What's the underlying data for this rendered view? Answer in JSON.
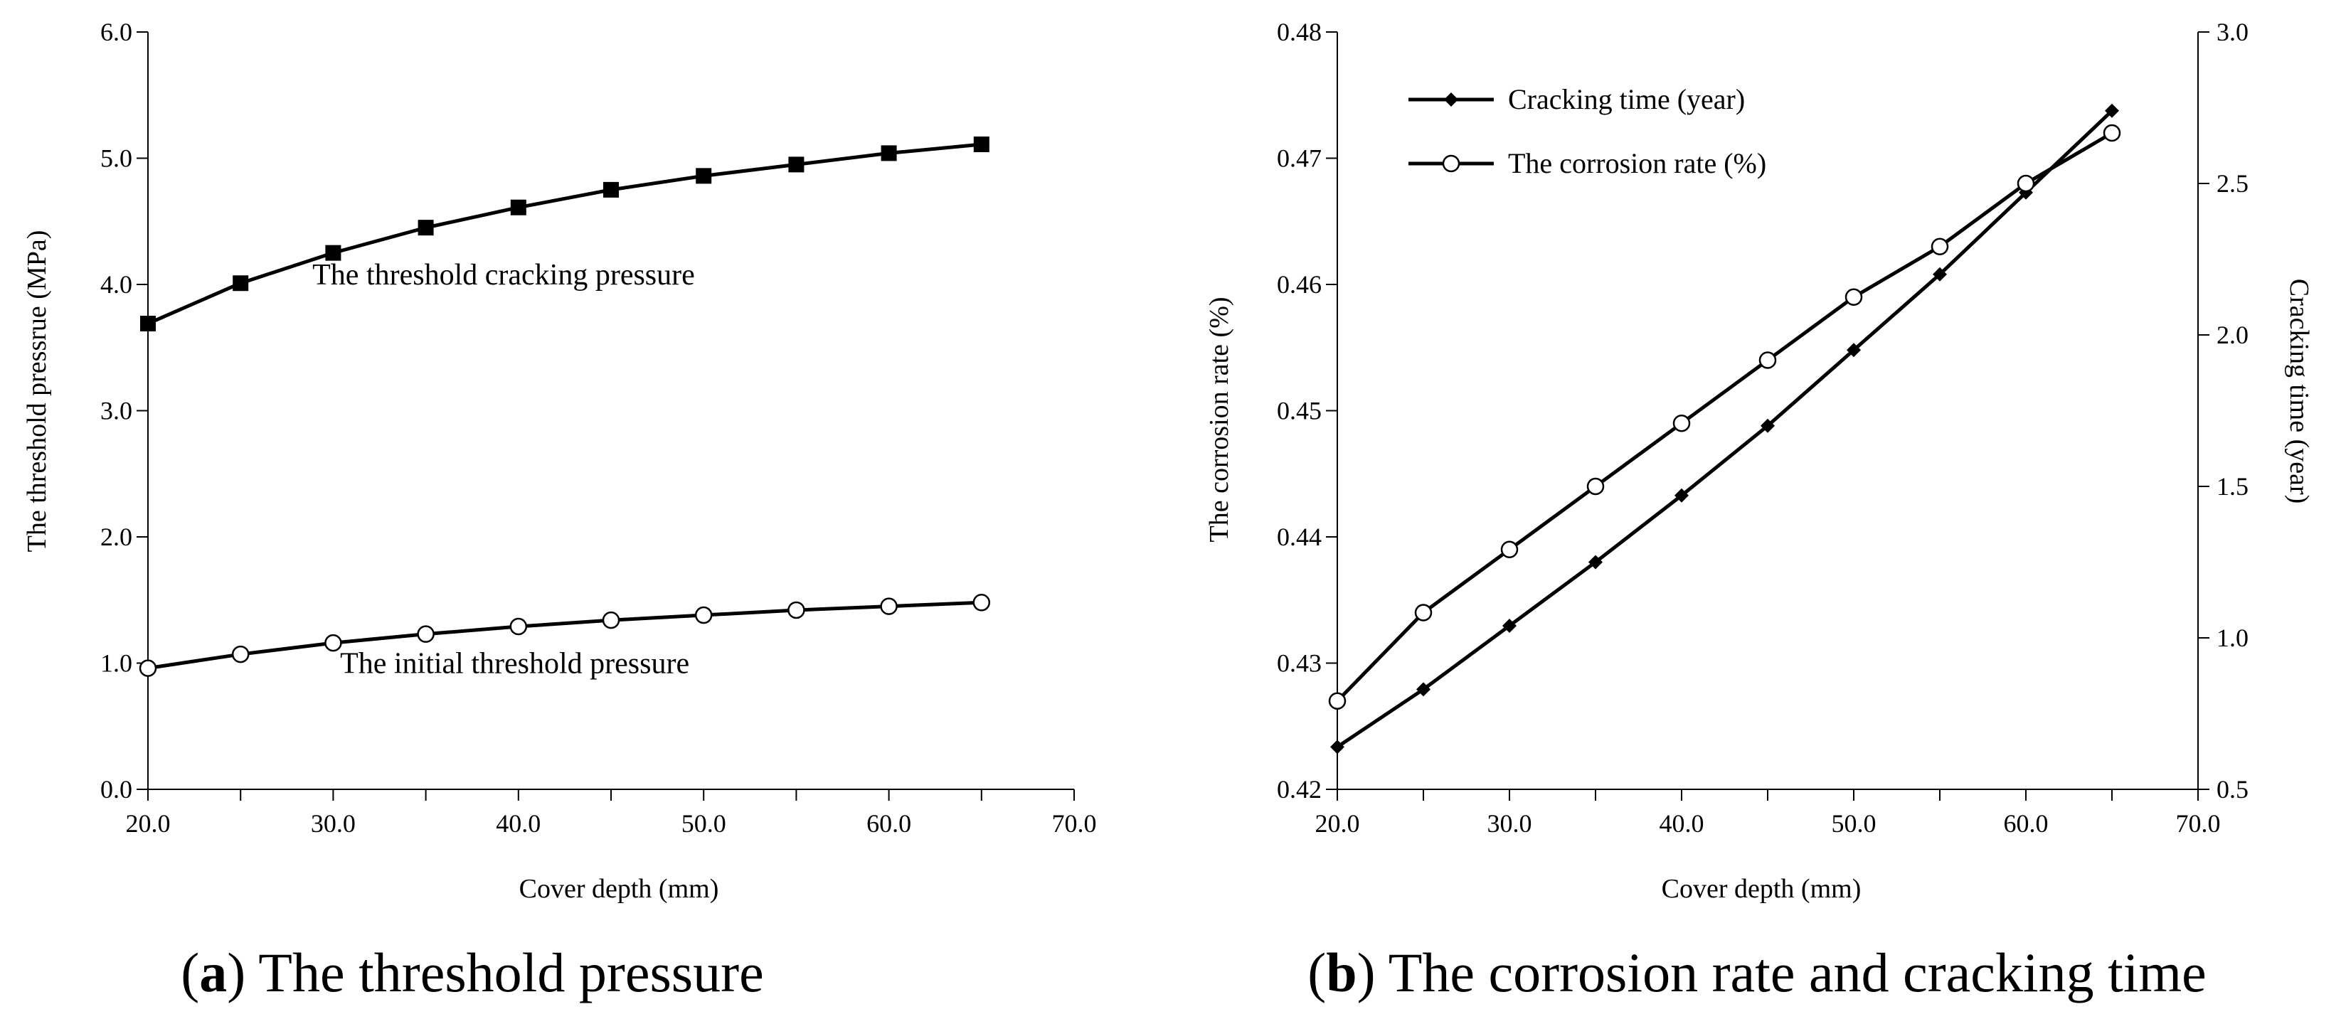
{
  "chart_data": [
    {
      "id": "a",
      "type": "line",
      "caption": {
        "letter": "a",
        "text": "The threshold pressure"
      },
      "xlabel": "Cover depth (mm)",
      "ylabel": "The threshold pressrue (MPa)",
      "xlim": [
        20,
        70
      ],
      "ylim": [
        0,
        6
      ],
      "xticks": [
        20,
        30,
        40,
        50,
        60,
        70
      ],
      "xtick_labels": [
        "20.0",
        "30.0",
        "40.0",
        "50.0",
        "60.0",
        "70.0"
      ],
      "xminor": [
        25,
        35,
        45,
        55,
        65
      ],
      "yticks": [
        0,
        1,
        2,
        3,
        4,
        5,
        6
      ],
      "ytick_labels": [
        "0.0",
        "1.0",
        "2.0",
        "3.0",
        "4.0",
        "5.0",
        "6.0"
      ],
      "x": [
        20,
        25,
        30,
        35,
        40,
        45,
        50,
        55,
        60,
        65
      ],
      "series": [
        {
          "name": "The threshold cracking pressure",
          "marker": "square",
          "values": [
            3.69,
            4.01,
            4.25,
            4.45,
            4.61,
            4.75,
            4.86,
            4.95,
            5.04,
            5.11
          ]
        },
        {
          "name": "The initial threshold pressure",
          "marker": "circle",
          "values": [
            0.96,
            1.07,
            1.16,
            1.23,
            1.29,
            1.34,
            1.38,
            1.42,
            1.45,
            1.48
          ]
        }
      ],
      "annotations": [
        {
          "text": "The threshold cracking pressure",
          "at": [
            39.2,
            4.0
          ]
        },
        {
          "text": "The initial threshold pressure",
          "at": [
            39.8,
            0.92
          ]
        }
      ]
    },
    {
      "id": "b",
      "type": "line",
      "caption": {
        "letter": "b",
        "text": "The corrosion rate and cracking time"
      },
      "xlabel": "Cover depth (mm)",
      "ylabel": "The corrosion rate (%)",
      "y2label": "Cracking time (year)",
      "xlim": [
        20,
        70
      ],
      "ylim": [
        0.42,
        0.48
      ],
      "y2lim": [
        0.5,
        3.0
      ],
      "xticks": [
        20,
        30,
        40,
        50,
        60,
        70
      ],
      "xtick_labels": [
        "20.0",
        "30.0",
        "40.0",
        "50.0",
        "60.0",
        "70.0"
      ],
      "xminor": [
        25,
        35,
        45,
        55,
        65
      ],
      "yticks": [
        0.42,
        0.43,
        0.44,
        0.45,
        0.46,
        0.47,
        0.48
      ],
      "ytick_labels": [
        "0.42",
        "0.43",
        "0.44",
        "0.45",
        "0.46",
        "0.47",
        "0.48"
      ],
      "y2ticks": [
        0.5,
        1.0,
        1.5,
        2.0,
        2.5,
        3.0
      ],
      "y2tick_labels": [
        "0.5",
        "1.0",
        "1.5",
        "2.0",
        "2.5",
        "3.0"
      ],
      "x": [
        20,
        25,
        30,
        35,
        40,
        45,
        50,
        55,
        60,
        65
      ],
      "legend_position": "top-left",
      "series": [
        {
          "name": "Cracking time (year)",
          "marker": "diamond",
          "axis": "right",
          "values": [
            0.64,
            0.83,
            1.04,
            1.25,
            1.47,
            1.7,
            1.95,
            2.2,
            2.47,
            2.74
          ]
        },
        {
          "name": "The corrosion rate (%)",
          "marker": "circle",
          "axis": "left",
          "values": [
            0.427,
            0.434,
            0.439,
            0.444,
            0.449,
            0.454,
            0.459,
            0.463,
            0.468,
            0.472
          ]
        }
      ]
    }
  ]
}
